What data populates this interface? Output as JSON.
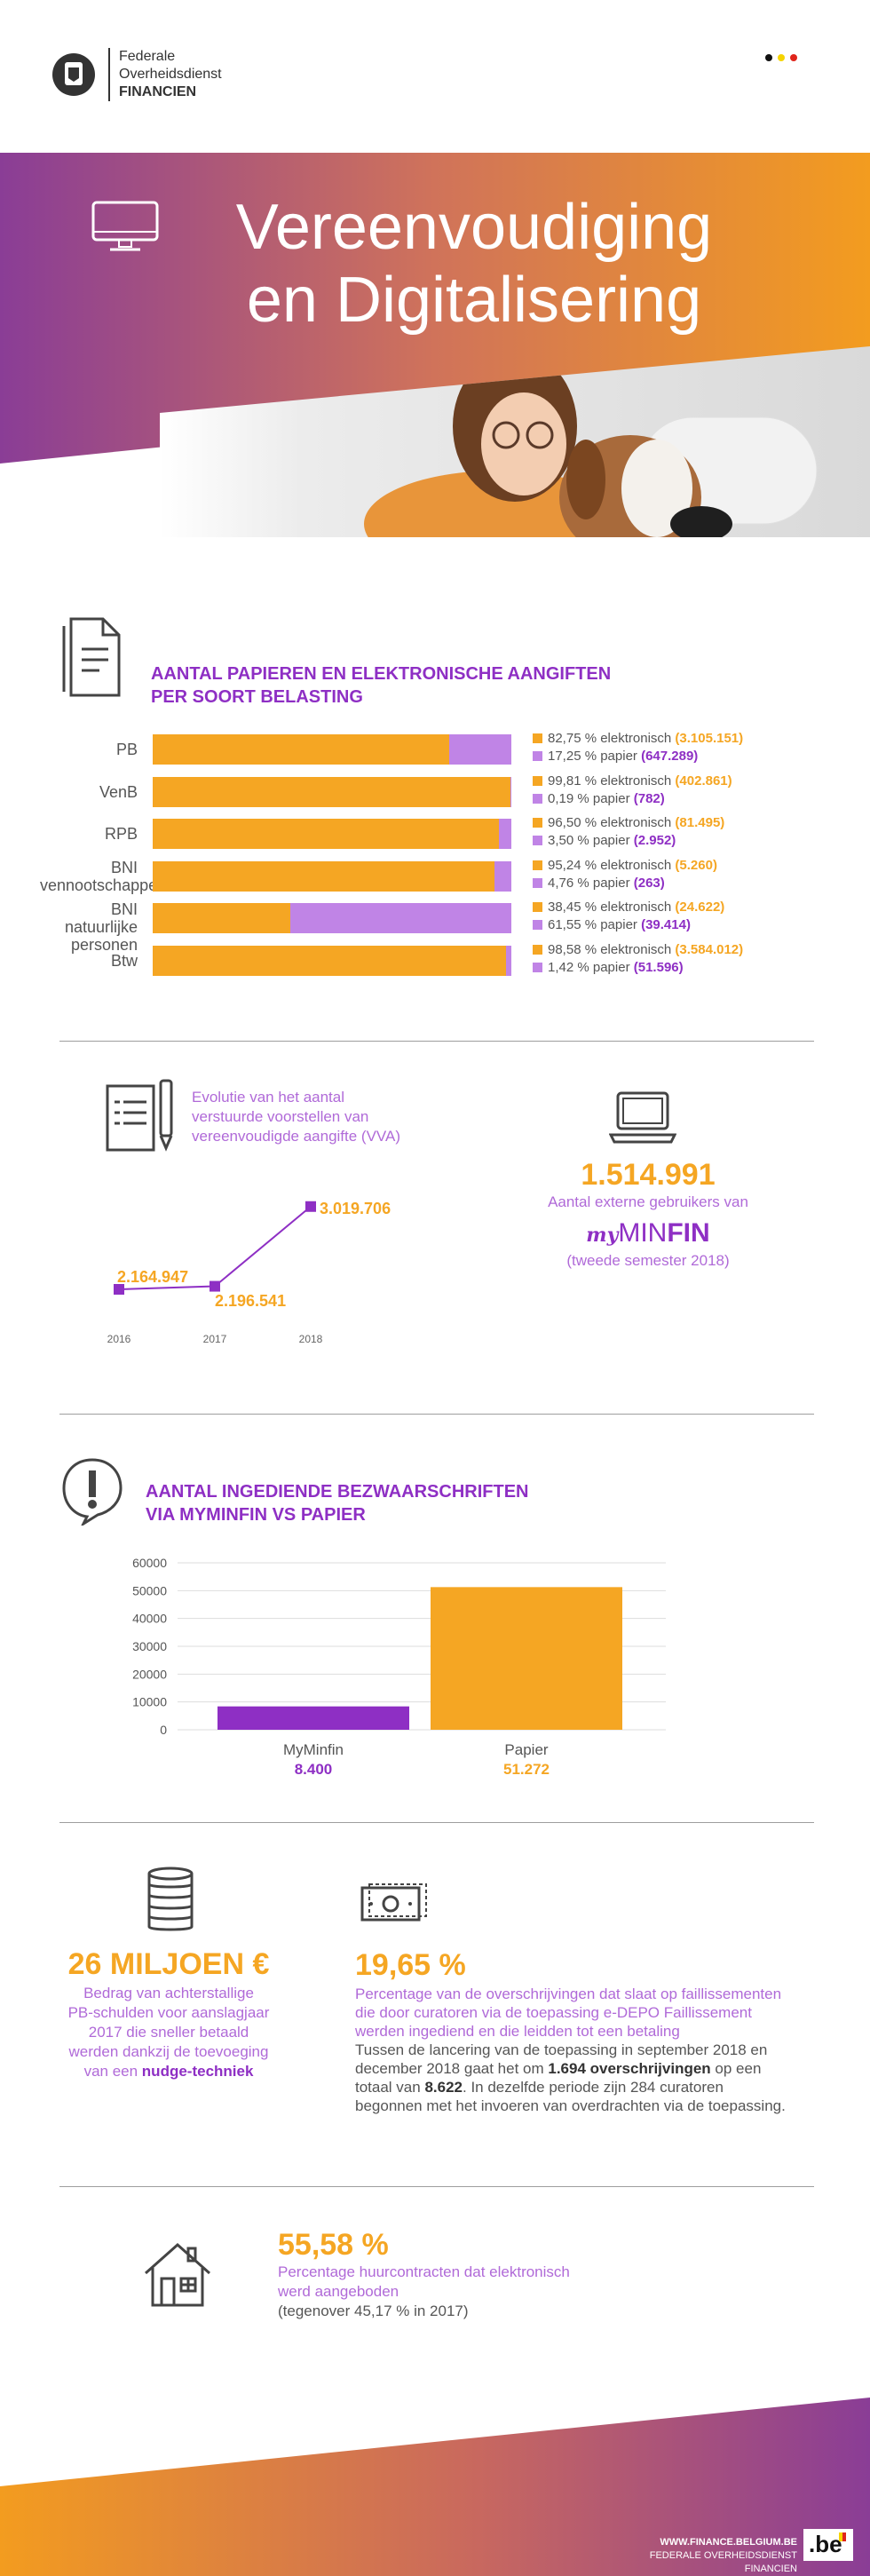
{
  "header": {
    "org_line1": "Federale",
    "org_line2": "Overheidsdienst",
    "org_line3": "FINANCIEN"
  },
  "hero": {
    "title_line1": "Vereenvoudiging",
    "title_line2": "en Digitalisering"
  },
  "section1": {
    "title_line1": "AANTAL PAPIEREN EN ELEKTRONISCHE AANGIFTEN",
    "title_line2": "PER SOORT BELASTING",
    "chart_data": {
      "type": "bar",
      "orientation": "horizontal-stacked",
      "categories": [
        "PB",
        "VenB",
        "RPB",
        "BNI vennootschappen",
        "BNI natuurlijke personen",
        "Btw"
      ],
      "series": [
        {
          "name": "elektronisch",
          "values": [
            82.75,
            99.81,
            96.5,
            95.24,
            38.45,
            98.58
          ]
        },
        {
          "name": "papier",
          "values": [
            17.25,
            0.19,
            3.5,
            4.76,
            61.55,
            1.42
          ]
        }
      ]
    },
    "rows": [
      {
        "cat1": "PB",
        "cat2": "",
        "el_text": "82,75 % elektronisch",
        "el_count": "(3.105.151)",
        "pa_text": "17,25 % papier",
        "pa_count": "(647.289)"
      },
      {
        "cat1": "VenB",
        "cat2": "",
        "el_text": "99,81 % elektronisch",
        "el_count": "(402.861)",
        "pa_text": "0,19 % papier",
        "pa_count": "(782)"
      },
      {
        "cat1": "RPB",
        "cat2": "",
        "el_text": "96,50 % elektronisch",
        "el_count": "(81.495)",
        "pa_text": "3,50 % papier",
        "pa_count": "(2.952)"
      },
      {
        "cat1": "BNI",
        "cat2": "vennootschappen",
        "el_text": "95,24 % elektronisch",
        "el_count": "(5.260)",
        "pa_text": "4,76 % papier",
        "pa_count": "(263)"
      },
      {
        "cat1": "BNI natuurlijke",
        "cat2": "personen",
        "el_text": "38,45 % elektronisch",
        "el_count": "(24.622)",
        "pa_text": "61,55 % papier",
        "pa_count": "(39.414)"
      },
      {
        "cat1": "Btw",
        "cat2": "",
        "el_text": "98,58 % elektronisch",
        "el_count": "(3.584.012)",
        "pa_text": "1,42 % papier",
        "pa_count": "(51.596)"
      }
    ]
  },
  "section2": {
    "vva_title_line1": "Evolutie van het aantal",
    "vva_title_line2": "verstuurde voorstellen van",
    "vva_title_line3": "vereenvoudigde aangifte (VVA)",
    "chart_data": {
      "type": "line",
      "x": [
        "2016",
        "2017",
        "2018"
      ],
      "values": [
        2164947,
        2196541,
        3019706
      ],
      "labels": [
        "2.164.947",
        "2.196.541",
        "3.019.706"
      ]
    },
    "users_number": "1.514.991",
    "users_text": "Aantal externe gebruikers van",
    "myminfin_my": "my",
    "myminfin_min": "MIN",
    "myminfin_fin": "FIN",
    "users_period": "(tweede semester 2018)"
  },
  "section3": {
    "title_line1": "AANTAL INGEDIENDE BEZWAARSCHRIFTEN",
    "title_line2": "VIA MYMINFIN VS PAPIER",
    "chart_data": {
      "type": "bar",
      "categories": [
        "MyMinfin",
        "Papier"
      ],
      "values": [
        8400,
        51272
      ],
      "value_labels": [
        "8.400",
        "51.272"
      ],
      "ylim": [
        0,
        60000
      ],
      "yticks": [
        "0",
        "10000",
        "20000",
        "30000",
        "40000",
        "50000",
        "60000"
      ]
    }
  },
  "section4": {
    "amount": "26 MILJOEN €",
    "amount_desc_line1": "Bedrag van achterstallige",
    "amount_desc_line2": "PB-schulden voor aanslagjaar",
    "amount_desc_line3": "2017 die sneller betaald",
    "amount_desc_line4": "werden dankzij de toevoeging",
    "amount_desc_line5a": "van een ",
    "amount_desc_line5b": "nudge-techniek",
    "pct": "19,65 %",
    "pct_desc_line1": "Percentage van de overschrijvingen dat slaat op faillissementen",
    "pct_desc_line2": "die door curatoren via de toepassing e-DEPO Faillissement",
    "pct_desc_line3": "werden ingediend en die leidden tot een betaling",
    "detail_line1": "Tussen de lancering van de toepassing in september 2018 en",
    "detail_line2a": "december 2018 gaat het om ",
    "detail_line2b": "1.694 overschrijvingen",
    "detail_line2c": " op een",
    "detail_line3a": "totaal van ",
    "detail_line3b": "8.622",
    "detail_line3c": ". In dezelfde periode zijn 284 curatoren",
    "detail_line4": "begonnen met het invoeren van overdrachten via de toepassing."
  },
  "section5": {
    "pct": "55,58 %",
    "desc_line1": "Percentage huurcontracten dat elektronisch",
    "desc_line2": "werd aangeboden",
    "compare": "(tegenover 45,17 % in 2017)"
  },
  "footer": {
    "url": "WWW.FINANCE.BELGIUM.BE",
    "org": "FEDERALE OVERHEIDSDIENST FINANCIEN",
    "be_logo": ".be"
  },
  "colors": {
    "orange": "#f5a623",
    "purple": "#8e2fc4",
    "light_purple": "#c084e6",
    "grey_text": "#555555"
  }
}
